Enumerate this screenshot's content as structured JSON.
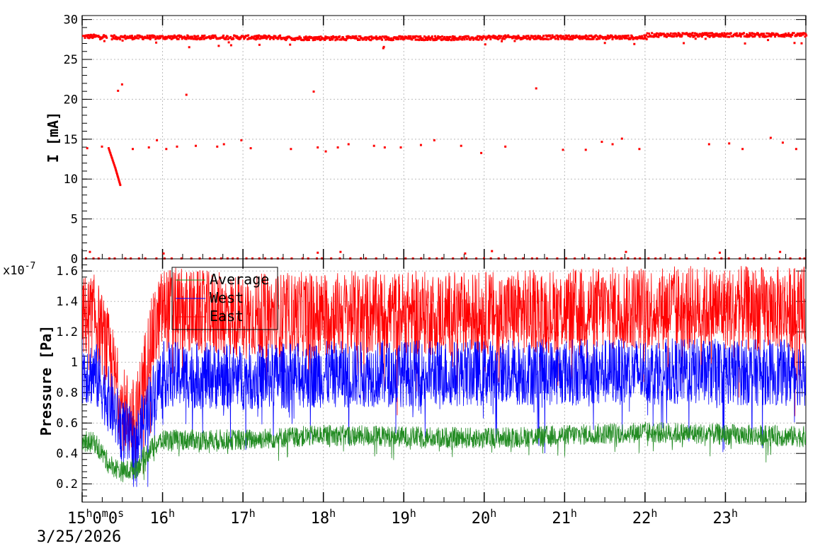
{
  "chart_data": [
    {
      "type": "scatter",
      "ylabel": "I [mA]",
      "ylim": [
        0,
        30.5
      ],
      "yticks": [
        0,
        5,
        10,
        15,
        20,
        25,
        30
      ],
      "grid": true,
      "color": "#ff0000",
      "series": [
        {
          "segments": [
            {
              "x_start": "15:00",
              "x_end": "15:18",
              "y": 28.0
            },
            {
              "x_start": "15:21",
              "x_end": "17:30",
              "y": 27.9
            },
            {
              "x_start": "17:30",
              "x_end": "20:00",
              "y": 27.8
            },
            {
              "x_start": "20:00",
              "x_end": "22:00",
              "y": 27.9
            },
            {
              "x_start": "22:00",
              "x_end": "24:00",
              "y": 28.2
            }
          ],
          "decay": [
            {
              "x": "15:19",
              "y": 14.0
            },
            {
              "x": "15:24",
              "y": 11.5
            },
            {
              "x": "15:28",
              "y": 9.2
            }
          ],
          "outliers": [
            {
              "x": "15:03",
              "y": 14.0
            },
            {
              "x": "15:14",
              "y": 14.2
            },
            {
              "x": "15:26",
              "y": 21.2
            },
            {
              "x": "15:29",
              "y": 22.0
            },
            {
              "x": "15:37",
              "y": 13.9
            },
            {
              "x": "15:49",
              "y": 14.1
            },
            {
              "x": "15:55",
              "y": 15.0
            },
            {
              "x": "16:02",
              "y": 13.9
            },
            {
              "x": "16:10",
              "y": 14.2
            },
            {
              "x": "16:17",
              "y": 20.7
            },
            {
              "x": "16:24",
              "y": 14.3
            },
            {
              "x": "16:40",
              "y": 14.2
            },
            {
              "x": "16:45",
              "y": 14.5
            },
            {
              "x": "16:58",
              "y": 15.0
            },
            {
              "x": "17:05",
              "y": 14.0
            },
            {
              "x": "17:35",
              "y": 13.9
            },
            {
              "x": "17:52",
              "y": 21.1
            },
            {
              "x": "17:55",
              "y": 14.1
            },
            {
              "x": "18:01",
              "y": 13.6
            },
            {
              "x": "18:10",
              "y": 14.1
            },
            {
              "x": "18:18",
              "y": 14.5
            },
            {
              "x": "18:37",
              "y": 14.3
            },
            {
              "x": "18:45",
              "y": 14.1
            },
            {
              "x": "18:57",
              "y": 14.1
            },
            {
              "x": "19:12",
              "y": 14.4
            },
            {
              "x": "19:22",
              "y": 15.0
            },
            {
              "x": "19:42",
              "y": 14.3
            },
            {
              "x": "19:57",
              "y": 13.4
            },
            {
              "x": "20:15",
              "y": 14.2
            },
            {
              "x": "20:38",
              "y": 21.5
            },
            {
              "x": "20:58",
              "y": 13.8
            },
            {
              "x": "21:15",
              "y": 13.8
            },
            {
              "x": "21:27",
              "y": 14.8
            },
            {
              "x": "21:35",
              "y": 14.5
            },
            {
              "x": "21:42",
              "y": 15.2
            },
            {
              "x": "21:55",
              "y": 13.9
            },
            {
              "x": "22:47",
              "y": 14.5
            },
            {
              "x": "23:02",
              "y": 14.6
            },
            {
              "x": "23:12",
              "y": 13.9
            },
            {
              "x": "23:33",
              "y": 15.3
            },
            {
              "x": "23:42",
              "y": 14.7
            },
            {
              "x": "23:52",
              "y": 13.9
            },
            {
              "x": "15:05",
              "y": 1.0
            },
            {
              "x": "16:00",
              "y": 0.8
            },
            {
              "x": "17:55",
              "y": 0.9
            },
            {
              "x": "18:12",
              "y": 1.0
            },
            {
              "x": "19:45",
              "y": 0.8
            },
            {
              "x": "20:05",
              "y": 1.1
            },
            {
              "x": "21:45",
              "y": 1.0
            },
            {
              "x": "22:55",
              "y": 0.9
            },
            {
              "x": "23:40",
              "y": 1.0
            }
          ]
        }
      ]
    },
    {
      "type": "line",
      "ylabel": "Pressure [Pa]",
      "y_multiplier": "x10",
      "y_exponent": "-7",
      "ylim": [
        0.08,
        1.68
      ],
      "yticks": [
        "0.2",
        "0.4",
        "0.6",
        "0.8",
        "1",
        "1.2",
        "1.4",
        "1.6"
      ],
      "grid": true,
      "legend": {
        "position": "top-left"
      },
      "series": [
        {
          "name": "Average",
          "color": "#228b22",
          "base": 0.5,
          "amp": 0.07,
          "knots": [
            [
              "15:00",
              0.48
            ],
            [
              "15:10",
              0.47
            ],
            [
              "15:20",
              0.33
            ],
            [
              "15:30",
              0.28
            ],
            [
              "15:40",
              0.3
            ],
            [
              "15:50",
              0.42
            ],
            [
              "16:00",
              0.49
            ],
            [
              "17:00",
              0.49
            ],
            [
              "18:00",
              0.52
            ],
            [
              "20:00",
              0.5
            ],
            [
              "22:00",
              0.54
            ],
            [
              "24:00",
              0.51
            ]
          ]
        },
        {
          "name": "West",
          "color": "#0000ff",
          "base": 0.92,
          "amp": 0.22,
          "knots": [
            [
              "15:00",
              0.95
            ],
            [
              "15:10",
              0.92
            ],
            [
              "15:20",
              0.75
            ],
            [
              "15:30",
              0.55
            ],
            [
              "15:40",
              0.45
            ],
            [
              "15:50",
              0.72
            ],
            [
              "16:00",
              0.92
            ],
            [
              "17:00",
              0.9
            ],
            [
              "18:00",
              0.92
            ],
            [
              "20:00",
              0.93
            ],
            [
              "22:00",
              0.94
            ],
            [
              "24:00",
              0.93
            ]
          ]
        },
        {
          "name": "East",
          "color": "#ff0000",
          "base": 1.3,
          "amp": 0.28,
          "knots": [
            [
              "15:00",
              1.3
            ],
            [
              "15:10",
              1.3
            ],
            [
              "15:20",
              1.05
            ],
            [
              "15:30",
              0.7
            ],
            [
              "15:40",
              0.6
            ],
            [
              "15:50",
              1.1
            ],
            [
              "16:00",
              1.35
            ],
            [
              "17:00",
              1.3
            ],
            [
              "18:00",
              1.32
            ],
            [
              "20:00",
              1.32
            ],
            [
              "22:00",
              1.36
            ],
            [
              "24:00",
              1.35
            ]
          ]
        }
      ]
    }
  ],
  "time_axis": {
    "range": [
      "15:00",
      "24:00"
    ],
    "tick_labels": [
      {
        "x": "15:00",
        "hours": "15",
        "minutes": "0",
        "seconds": "0"
      },
      {
        "x": "16:00",
        "hours": "16"
      },
      {
        "x": "17:00",
        "hours": "17"
      },
      {
        "x": "18:00",
        "hours": "18"
      },
      {
        "x": "19:00",
        "hours": "19"
      },
      {
        "x": "20:00",
        "hours": "20"
      },
      {
        "x": "21:00",
        "hours": "21"
      },
      {
        "x": "22:00",
        "hours": "22"
      },
      {
        "x": "23:00",
        "hours": "23"
      }
    ],
    "date": "3/25/2026"
  }
}
